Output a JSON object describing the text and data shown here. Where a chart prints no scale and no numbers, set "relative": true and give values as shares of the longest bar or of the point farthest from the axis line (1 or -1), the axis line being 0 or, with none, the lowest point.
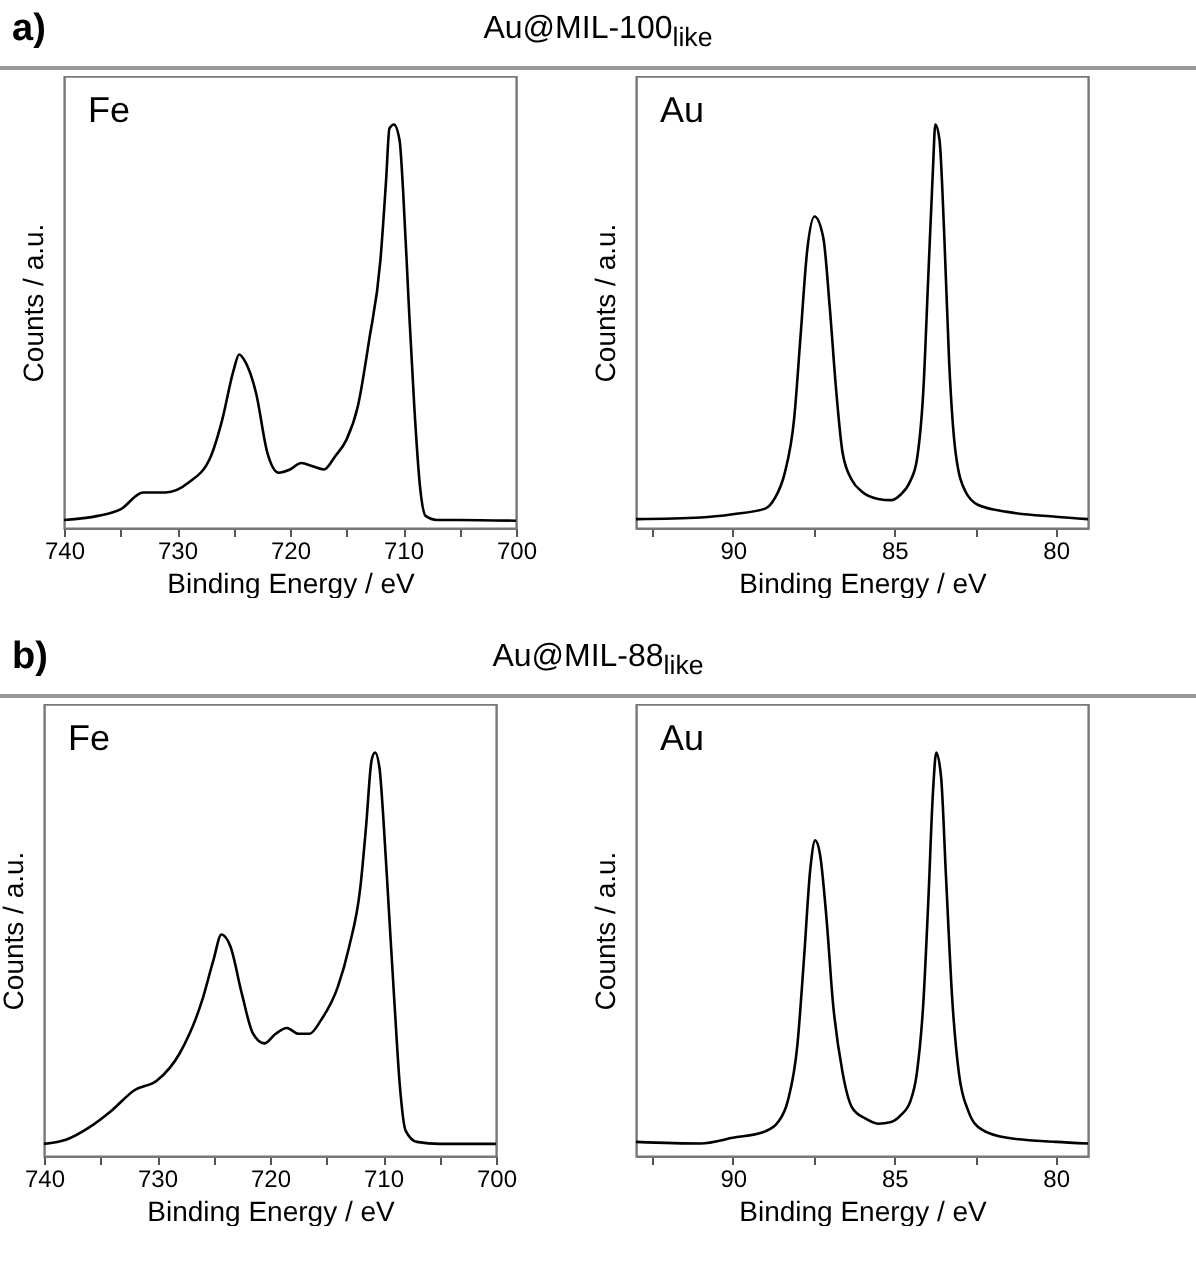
{
  "chart_data": [
    {
      "type": "line",
      "title": "Au@MIL-100$_{like}$",
      "annotations": [
        "a)",
        "Fe"
      ],
      "xlabel": "Binding Energy / eV",
      "ylabel": "Counts / a.u.",
      "relative": true,
      "xlim": [
        740,
        700
      ],
      "xticks": [
        740,
        {
          "value": 735,
          "label": null
        },
        730,
        {
          "value": 725,
          "label": null
        },
        720,
        {
          "value": 715,
          "label": null
        },
        710,
        {
          "value": 705,
          "label": null
        },
        700
      ],
      "series": [
        {
          "color": "#000000",
          "x": [
            740,
            737,
            735,
            733,
            731,
            729,
            727,
            726,
            725,
            724.5,
            724,
            723,
            722,
            721,
            720,
            719,
            718,
            717,
            716,
            715,
            714,
            713,
            712,
            711.5,
            711.2,
            710.8,
            710.3,
            710,
            709.5,
            709,
            708.5,
            708,
            707,
            705,
            700
          ],
          "values": [
            0.02,
            0.03,
            0.046,
            0.088,
            0.088,
            0.112,
            0.178,
            0.268,
            0.39,
            0.43,
            0.414,
            0.334,
            0.186,
            0.137,
            0.145,
            0.161,
            0.153,
            0.145,
            0.178,
            0.219,
            0.301,
            0.465,
            0.663,
            0.86,
            0.99,
            1,
            0.96,
            0.84,
            0.56,
            0.3,
            0.104,
            0.03,
            0.02,
            0.02,
            0.018
          ]
        }
      ]
    },
    {
      "type": "line",
      "annotations": [
        "Au"
      ],
      "xlabel": "Binding Energy / eV",
      "ylabel": "Counts / a.u.",
      "relative": true,
      "xlim": [
        93,
        79
      ],
      "xticks": [
        {
          "value": 92.5,
          "label": null
        },
        90,
        {
          "value": 87.5,
          "label": null
        },
        85,
        {
          "value": 82.5,
          "label": null
        },
        80
      ],
      "series": [
        {
          "color": "#000000",
          "x": [
            93,
            91,
            90,
            89,
            88.7,
            88.4,
            88.1,
            87.9,
            87.7,
            87.47,
            87.2,
            87,
            86.8,
            86.6,
            86.3,
            86,
            85.5,
            85.1,
            84.8,
            84.5,
            84.3,
            84.1,
            83.95,
            83.8,
            83.73,
            83.6,
            83.45,
            83.3,
            83.1,
            82.8,
            82.4,
            81.5,
            80,
            79
          ],
          "values": [
            0.022,
            0.026,
            0.034,
            0.048,
            0.074,
            0.134,
            0.272,
            0.479,
            0.686,
            0.772,
            0.72,
            0.548,
            0.341,
            0.186,
            0.117,
            0.09,
            0.072,
            0.069,
            0.083,
            0.117,
            0.169,
            0.341,
            0.617,
            0.893,
            1,
            0.962,
            0.721,
            0.41,
            0.186,
            0.091,
            0.057,
            0.04,
            0.028,
            0.022
          ]
        }
      ]
    },
    {
      "type": "line",
      "title": "Au@MIL-88$_{like}$",
      "annotations": [
        "b)",
        "Fe"
      ],
      "xlabel": "Binding Energy / eV",
      "ylabel": "Counts / a.u.",
      "relative": true,
      "xlim": [
        740,
        700
      ],
      "xticks": [
        740,
        {
          "value": 735,
          "label": null
        },
        730,
        {
          "value": 725,
          "label": null
        },
        720,
        {
          "value": 715,
          "label": null
        },
        710,
        {
          "value": 705,
          "label": null
        },
        700
      ],
      "series": [
        {
          "color": "#000000",
          "x": [
            740,
            738,
            736,
            734,
            732,
            730,
            728,
            726,
            725,
            724.3,
            723.5,
            722.5,
            721.5,
            720.5,
            719.5,
            718.5,
            717.5,
            716.5,
            715.5,
            714,
            713,
            712,
            711.5,
            711,
            710.7,
            710.3,
            710,
            709.5,
            709,
            708.5,
            708,
            707,
            705,
            700
          ],
          "values": [
            0.03,
            0.041,
            0.071,
            0.113,
            0.163,
            0.187,
            0.254,
            0.386,
            0.486,
            0.549,
            0.519,
            0.403,
            0.303,
            0.279,
            0.303,
            0.317,
            0.303,
            0.303,
            0.336,
            0.419,
            0.518,
            0.667,
            0.816,
            0.982,
            1,
            0.959,
            0.851,
            0.619,
            0.386,
            0.171,
            0.063,
            0.035,
            0.03,
            0.03
          ]
        }
      ]
    },
    {
      "type": "line",
      "annotations": [
        "Au"
      ],
      "xlabel": "Binding Energy / eV",
      "ylabel": "Counts / a.u.",
      "relative": true,
      "xlim": [
        93,
        79
      ],
      "xticks": [
        {
          "value": 92.5,
          "label": null
        },
        90,
        {
          "value": 87.5,
          "label": null
        },
        85,
        {
          "value": 82.5,
          "label": null
        },
        80
      ],
      "series": [
        {
          "color": "#000000",
          "x": [
            93,
            91,
            90,
            89,
            88.6,
            88.3,
            88,
            87.8,
            87.6,
            87.45,
            87.3,
            87.1,
            86.9,
            86.6,
            86.3,
            85.9,
            85.5,
            85.1,
            84.8,
            84.5,
            84.3,
            84.1,
            83.95,
            83.8,
            83.7,
            83.55,
            83.4,
            83.2,
            83,
            82.7,
            82.3,
            81.5,
            80,
            79
          ],
          "values": [
            0.035,
            0.031,
            0.045,
            0.061,
            0.084,
            0.136,
            0.276,
            0.485,
            0.712,
            0.782,
            0.747,
            0.589,
            0.38,
            0.206,
            0.119,
            0.093,
            0.08,
            0.084,
            0.101,
            0.136,
            0.206,
            0.38,
            0.625,
            0.904,
            1,
            0.939,
            0.695,
            0.382,
            0.206,
            0.11,
            0.066,
            0.045,
            0.035,
            0.031
          ]
        }
      ]
    }
  ]
}
